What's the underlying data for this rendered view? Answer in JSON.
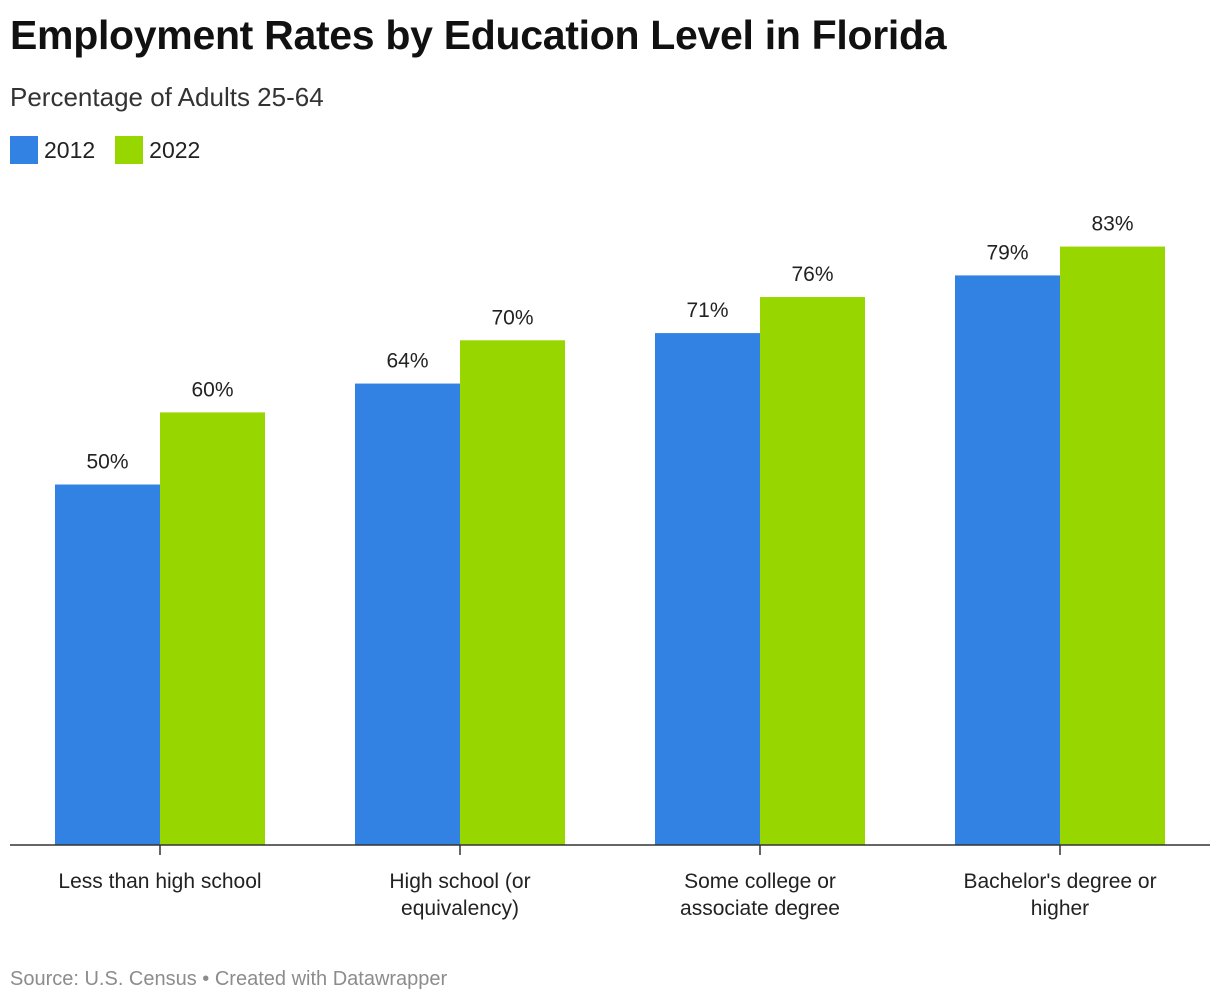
{
  "header": {
    "title": "Employment Rates by Education Level in Florida",
    "subtitle": "Percentage of Adults 25-64"
  },
  "footer": {
    "source": "Source: U.S. Census • Created with Datawrapper"
  },
  "chart_data": {
    "type": "bar",
    "categories": [
      [
        "Less than high school"
      ],
      [
        "High school (or",
        "equivalency)"
      ],
      [
        "Some college or",
        "associate degree"
      ],
      [
        "Bachelor's degree or",
        "higher"
      ]
    ],
    "series": [
      {
        "name": "2012",
        "color": "#3182e2",
        "values": [
          50,
          64,
          71,
          79
        ],
        "labels": [
          "50%",
          "64%",
          "71%",
          "79%"
        ]
      },
      {
        "name": "2022",
        "color": "#98d600",
        "values": [
          60,
          70,
          76,
          83
        ],
        "labels": [
          "60%",
          "70%",
          "76%",
          "83%"
        ]
      }
    ],
    "ylim": [
      0,
      100
    ],
    "grid": false,
    "legend_position": "top-left",
    "value_labels": "above bars"
  }
}
